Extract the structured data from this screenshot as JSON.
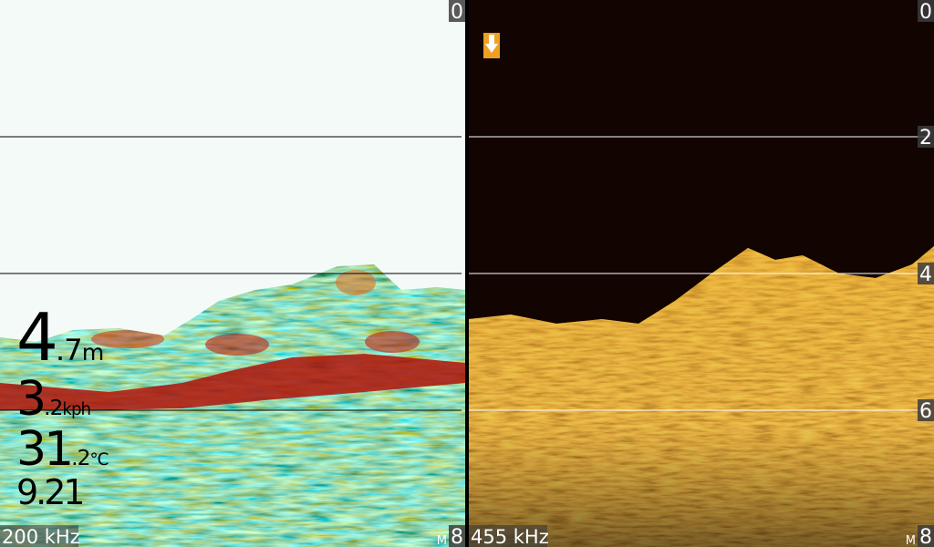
{
  "panels": [
    {
      "frequency": "200 kHz",
      "depth_range": [
        0,
        8
      ],
      "labeled_ticks": [
        0,
        8
      ],
      "grid_lines": [
        2,
        4,
        6
      ],
      "unit": "M",
      "readouts": [
        {
          "whole": "4",
          "fraction": ".7",
          "unit": "m"
        },
        {
          "whole": "3",
          "fraction": ".2",
          "unit": "kph"
        },
        {
          "whole": "31",
          "fraction": ".2",
          "unit": "°C"
        },
        {
          "whole": "9.21"
        }
      ]
    },
    {
      "frequency": "455 kHz",
      "depth_range": [
        0,
        8
      ],
      "labeled_ticks": [
        0,
        2,
        4,
        6,
        8
      ],
      "grid_lines": [
        2,
        4,
        6
      ],
      "unit": "M"
    }
  ]
}
